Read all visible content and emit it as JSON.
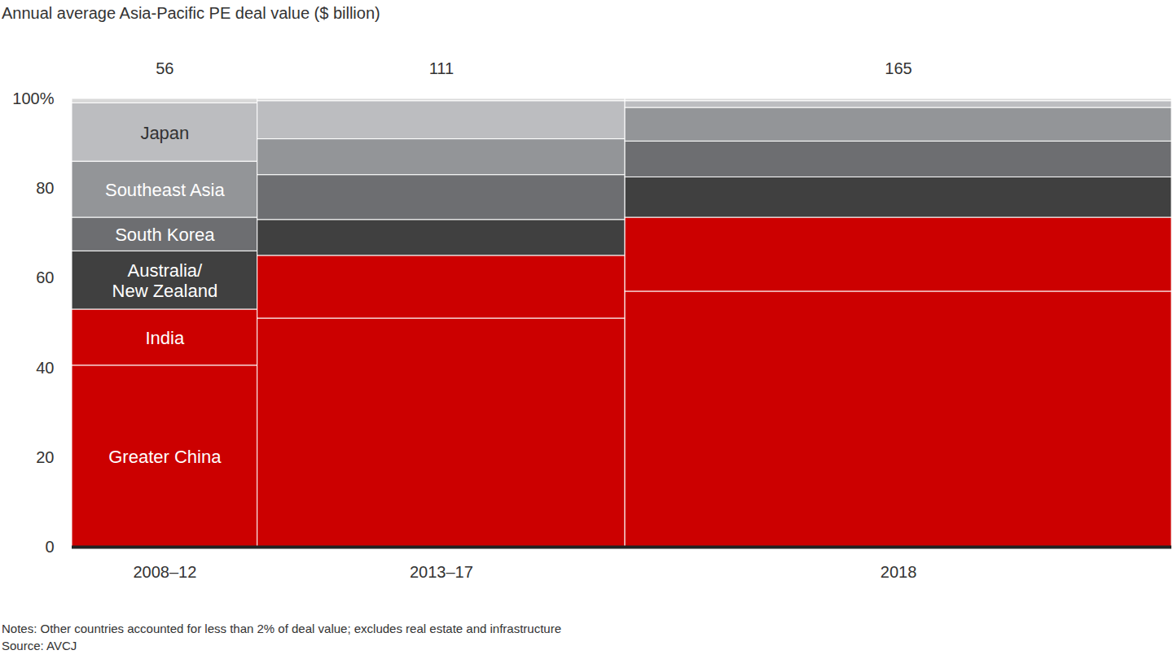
{
  "chart_data": {
    "type": "bar",
    "stacked": true,
    "title": "Annual average Asia-Pacific PE deal value ($ billion)",
    "categories": [
      "2008–12",
      "2013–17",
      "2018"
    ],
    "totals": [
      56,
      111,
      165
    ],
    "series": [
      {
        "name": "Greater China",
        "color": "#cc0000",
        "values": [
          40.5,
          51,
          57
        ]
      },
      {
        "name": "India",
        "color": "#cc0000",
        "values": [
          12.5,
          14,
          16.5
        ]
      },
      {
        "name": "Australia/\nNew Zealand",
        "color": "#404040",
        "values": [
          13,
          8,
          9
        ]
      },
      {
        "name": "South Korea",
        "color": "#6d6e71",
        "values": [
          7.5,
          10,
          8
        ]
      },
      {
        "name": "Southeast Asia",
        "color": "#939598",
        "values": [
          12.5,
          8,
          7.5
        ]
      },
      {
        "name": "Japan",
        "color": "#bcbdc0",
        "values": [
          13,
          8.5,
          1.5
        ]
      },
      {
        "name": null,
        "color": "#d9d9d9",
        "values": [
          1,
          0.5,
          0.5
        ]
      }
    ],
    "ylim": [
      0,
      100
    ],
    "yticks": [
      0,
      20,
      40,
      60,
      80,
      {
        "value": 100,
        "label": "100%"
      }
    ],
    "notes": "Notes: Other countries accounted for less than 2% of deal value; excludes real estate and infrastructure",
    "source": "Source: AVCJ"
  }
}
